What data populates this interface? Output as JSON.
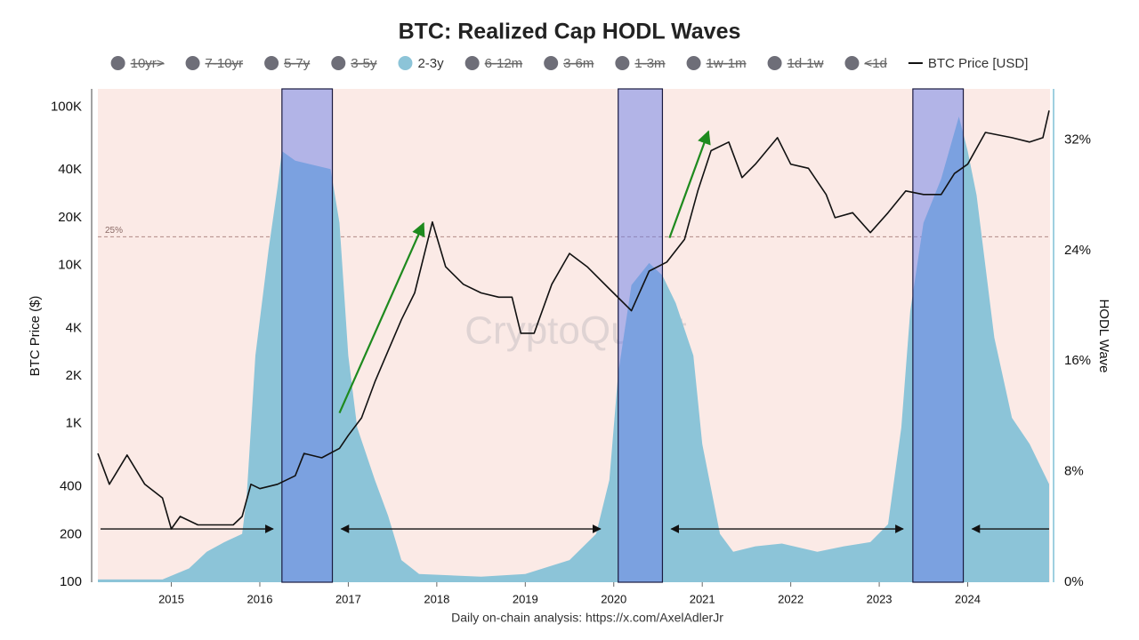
{
  "chart_data": {
    "type": "hodl",
    "title": "BTC: Realized Cap HODL Waves",
    "y_label": "BTC Price ($)",
    "y2_label": "HODL Wave",
    "watermark": "CryptoQuant",
    "footer": "Daily on-chain analysis: https://x.com/AxelAdlerJr",
    "log_y": true,
    "background": "#fbeae6",
    "xlim": [
      2014.17,
      2024.93
    ],
    "xticks": [
      2015,
      2016,
      2017,
      2018,
      2019,
      2020,
      2021,
      2022,
      2023,
      2024
    ],
    "ylim": [
      100,
      130000
    ],
    "yticks": [
      100,
      200,
      400,
      {
        "value": 1000,
        "label": "1K"
      },
      {
        "value": 2000,
        "label": "2K"
      },
      {
        "value": 4000,
        "label": "4K"
      },
      {
        "value": 10000,
        "label": "10K"
      },
      {
        "value": 20000,
        "label": "20K"
      },
      {
        "value": 40000,
        "label": "40K"
      },
      {
        "value": 100000,
        "label": "100K"
      }
    ],
    "y2lim": [
      0,
      35.7
    ],
    "y2ticks": [
      {
        "value": 0,
        "label": "0%"
      },
      {
        "value": 8,
        "label": "8%"
      },
      {
        "value": 16,
        "label": "16%"
      },
      {
        "value": 24,
        "label": "24%"
      },
      {
        "value": 32,
        "label": "32%"
      }
    ],
    "reference_line": {
      "value": 25,
      "label": "25%"
    },
    "highlights": [
      [
        2016.25,
        2016.82
      ],
      [
        2020.05,
        2020.55
      ],
      [
        2023.38,
        2023.95
      ]
    ],
    "highlight_color": "#6a7ee8",
    "arrows": [
      {
        "x": [
          2016.9,
          2017.85
        ],
        "y": [
          1170,
          18400
        ],
        "color": "#1e8a1e",
        "double": false
      },
      {
        "x": [
          2020.63,
          2021.07
        ],
        "y": [
          14900,
          70000
        ],
        "color": "#1e8a1e",
        "double": false
      },
      {
        "x": [
          2014.2,
          2016.15
        ],
        "y": [
          217,
          217
        ],
        "color": "#111111",
        "double": false
      },
      {
        "x": [
          2016.92,
          2019.85
        ],
        "y": [
          217,
          217
        ],
        "color": "#111111",
        "double": true
      },
      {
        "x": [
          2020.65,
          2023.27
        ],
        "y": [
          217,
          217
        ],
        "color": "#111111",
        "double": true
      },
      {
        "x": [
          2024.92,
          2024.05
        ],
        "y": [
          217,
          217
        ],
        "color": "#111111",
        "double": false
      }
    ],
    "series": [
      {
        "name": "10yr>",
        "color": "#6e6e78",
        "visible": false
      },
      {
        "name": "7-10yr",
        "color": "#6e6e78",
        "visible": false
      },
      {
        "name": "5-7y",
        "color": "#6e6e78",
        "visible": false
      },
      {
        "name": "3-5y",
        "color": "#6e6e78",
        "visible": false
      },
      {
        "name": "2-3y",
        "color": "#8cc4d8",
        "visible": true,
        "type": "area",
        "axis": "y2",
        "x": [
          2014.17,
          2014.5,
          2014.9,
          2015.2,
          2015.4,
          2015.6,
          2015.8,
          2015.85,
          2015.95,
          2016.1,
          2016.2,
          2016.25,
          2016.4,
          2016.6,
          2016.8,
          2016.9,
          2017.0,
          2017.1,
          2017.3,
          2017.45,
          2017.6,
          2017.8,
          2018.5,
          2019.0,
          2019.5,
          2019.8,
          2019.95,
          2020.05,
          2020.2,
          2020.4,
          2020.55,
          2020.7,
          2020.9,
          2021.0,
          2021.2,
          2021.35,
          2021.6,
          2021.9,
          2022.3,
          2022.6,
          2022.9,
          2023.1,
          2023.25,
          2023.35,
          2023.5,
          2023.7,
          2023.9,
          2024.0,
          2024.1,
          2024.3,
          2024.5,
          2024.7,
          2024.92
        ],
        "values": [
          0.2,
          0.2,
          0.2,
          1.0,
          2.2,
          2.9,
          3.5,
          6.1,
          16.4,
          24.1,
          28.6,
          31.2,
          30.5,
          30.2,
          29.9,
          26.0,
          16.4,
          11.2,
          7.4,
          4.8,
          1.6,
          0.6,
          0.4,
          0.6,
          1.6,
          3.5,
          7.4,
          15.1,
          21.5,
          23.1,
          22.2,
          20.2,
          16.4,
          10.0,
          3.5,
          2.2,
          2.6,
          2.8,
          2.2,
          2.6,
          2.9,
          4.2,
          11.2,
          19.6,
          26.0,
          29.2,
          33.7,
          31.2,
          28.0,
          17.7,
          11.9,
          10.0,
          7.1
        ]
      },
      {
        "name": "6-12m",
        "color": "#6e6e78",
        "visible": false
      },
      {
        "name": "3-6m",
        "color": "#6e6e78",
        "visible": false
      },
      {
        "name": "1-3m",
        "color": "#6e6e78",
        "visible": false
      },
      {
        "name": "1w-1m",
        "color": "#6e6e78",
        "visible": false
      },
      {
        "name": "1d-1w",
        "color": "#6e6e78",
        "visible": false
      },
      {
        "name": "<1d",
        "color": "#6e6e78",
        "visible": false
      },
      {
        "name": "BTC Price [USD]",
        "color": "#111111",
        "visible": true,
        "type": "line",
        "axis": "y",
        "x": [
          2014.17,
          2014.3,
          2014.5,
          2014.7,
          2014.9,
          2015.0,
          2015.1,
          2015.3,
          2015.5,
          2015.7,
          2015.8,
          2015.9,
          2016.0,
          2016.2,
          2016.4,
          2016.5,
          2016.7,
          2016.9,
          2017.0,
          2017.15,
          2017.3,
          2017.45,
          2017.6,
          2017.75,
          2017.95,
          2018.1,
          2018.3,
          2018.5,
          2018.7,
          2018.85,
          2018.95,
          2019.1,
          2019.3,
          2019.5,
          2019.7,
          2019.95,
          2020.2,
          2020.4,
          2020.6,
          2020.8,
          2020.95,
          2021.1,
          2021.3,
          2021.45,
          2021.6,
          2021.85,
          2022.0,
          2022.2,
          2022.4,
          2022.5,
          2022.7,
          2022.9,
          2023.1,
          2023.3,
          2023.5,
          2023.7,
          2023.85,
          2024.0,
          2024.2,
          2024.5,
          2024.7,
          2024.85,
          2024.92
        ],
        "values": [
          650,
          415,
          635,
          415,
          340,
          217,
          260,
          230,
          230,
          230,
          260,
          415,
          390,
          415,
          470,
          650,
          610,
          700,
          845,
          1090,
          1840,
          2890,
          4540,
          6700,
          18800,
          9800,
          7600,
          6700,
          6300,
          6300,
          3730,
          3730,
          7600,
          11900,
          9800,
          7100,
          5170,
          9200,
          10500,
          14600,
          29500,
          53000,
          60000,
          35800,
          43500,
          64000,
          43500,
          41000,
          28000,
          20000,
          21500,
          16100,
          21500,
          29500,
          28000,
          28000,
          38000,
          43500,
          69000,
          64000,
          60000,
          64000,
          95000
        ]
      }
    ]
  }
}
